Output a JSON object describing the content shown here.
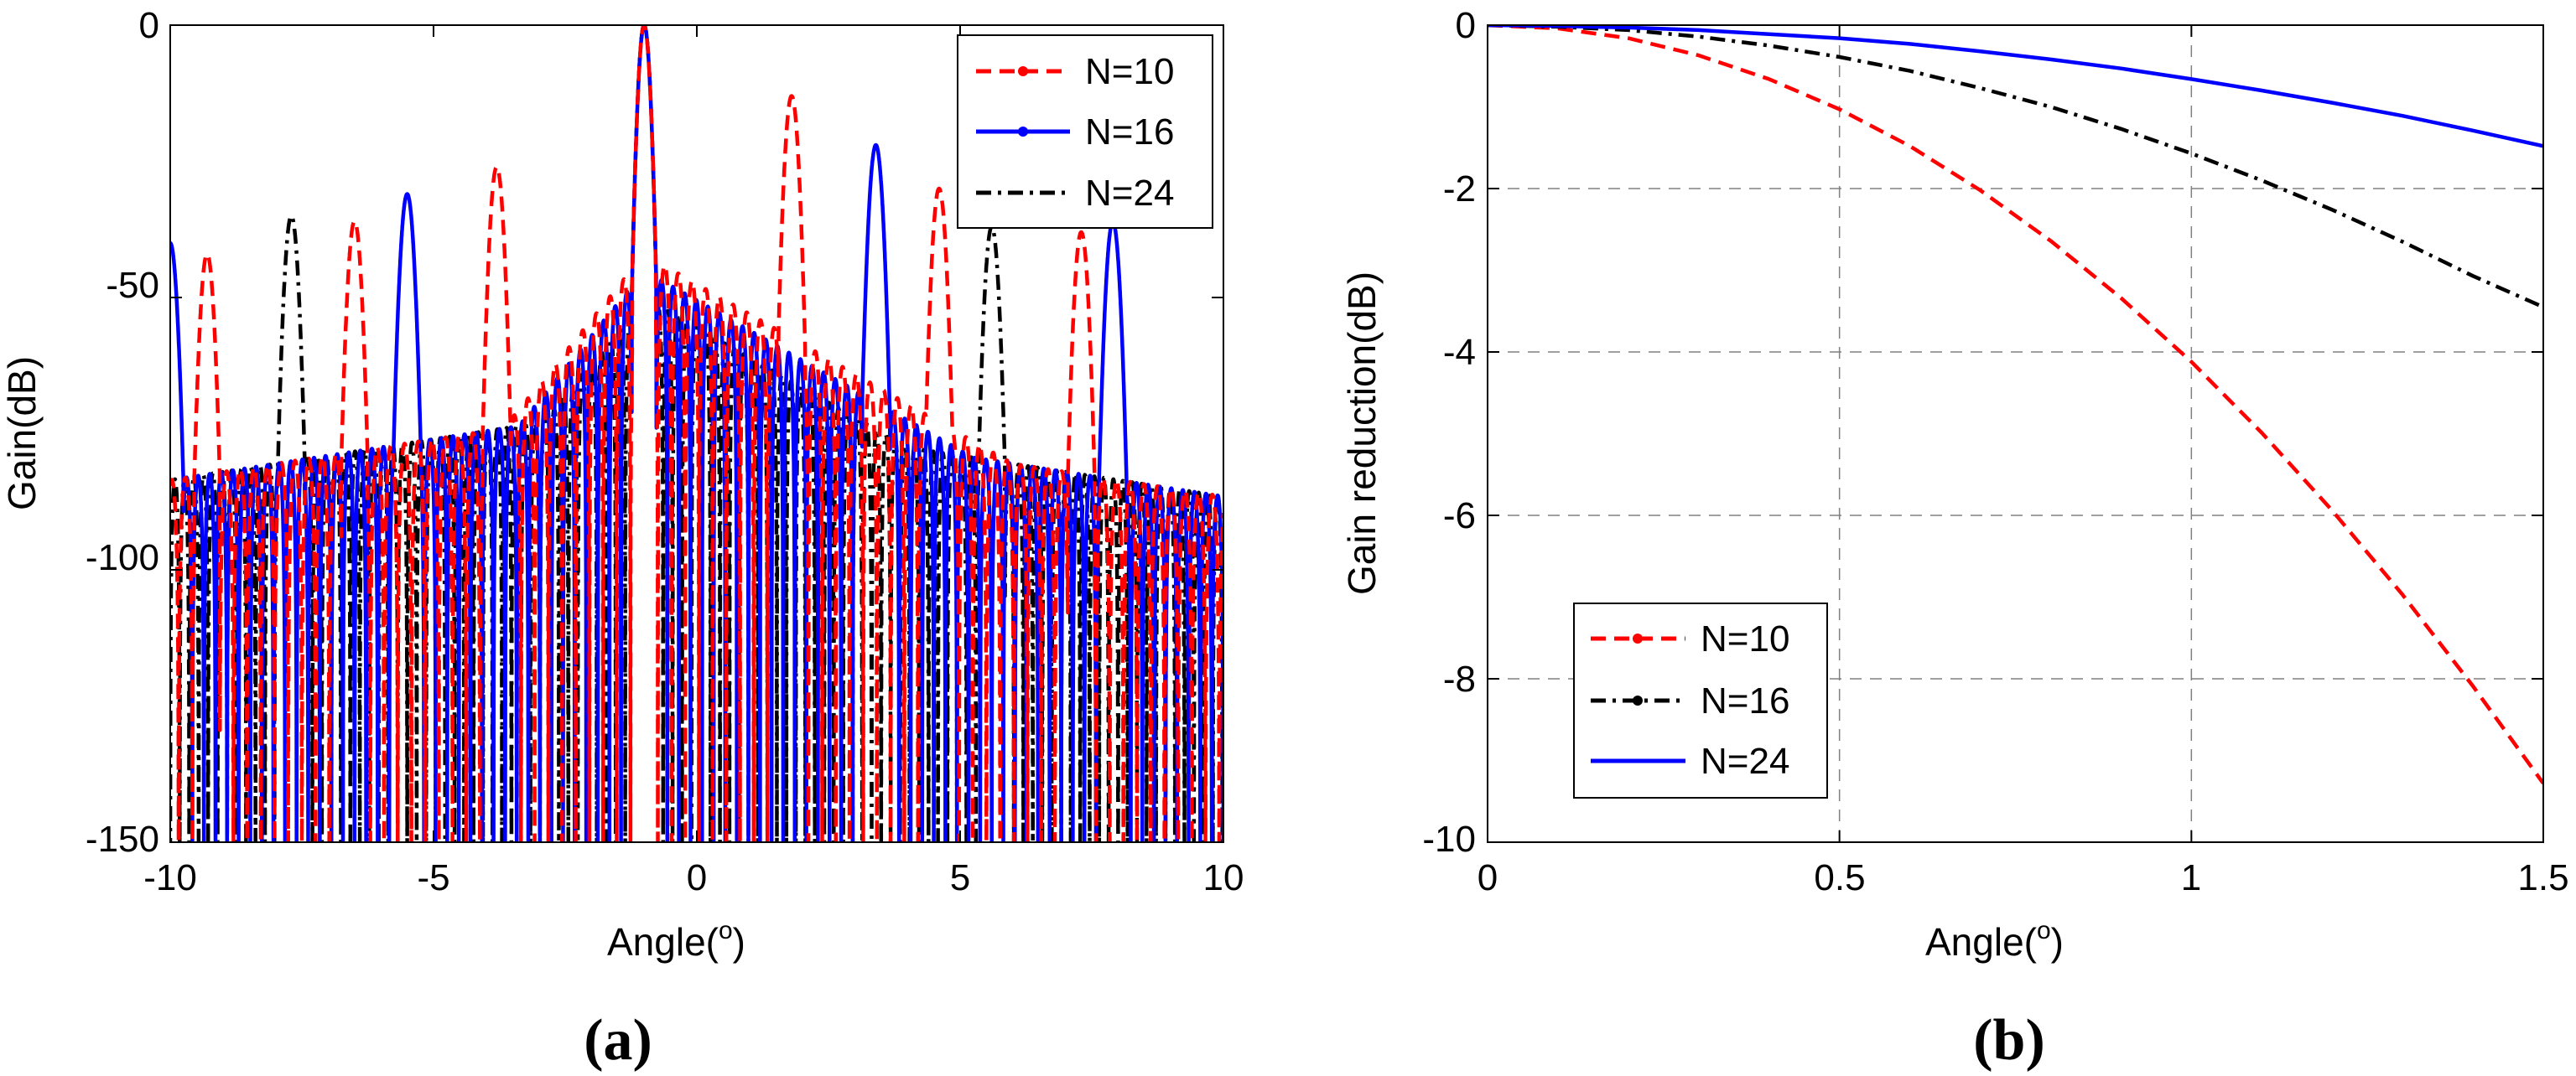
{
  "chart_data": [
    {
      "panel_label": "(a)",
      "type": "line",
      "xlabel": "Angle(o)",
      "xlabel_text": "Angle(",
      "xlabel_sup": "o",
      "xlabel_close": ")",
      "ylabel": "Gain(dB)",
      "xlim": [
        -10,
        10
      ],
      "ylim": [
        -150,
        0
      ],
      "xticks": [
        -10,
        -5,
        0,
        5,
        10
      ],
      "yticks": [
        0,
        -50,
        -100,
        -150
      ],
      "xtick_labels": [
        "-10",
        "-5",
        "0",
        "5",
        "10"
      ],
      "ytick_labels": [
        "0",
        "-50",
        "-100",
        "-150"
      ],
      "grid": false,
      "legend": "top-right",
      "series": [
        {
          "name": "N=10",
          "color": "#ff0000",
          "style": "dashed-dot-marker",
          "main_lobe": -1,
          "grating_lobes": [
            -9.3,
            -6.5,
            -3.8,
            1.8,
            4.6,
            7.3
          ],
          "grating_peak_values": [
            -42,
            -36,
            -26,
            -13,
            -30,
            -38
          ],
          "null_spacing": 0.26,
          "sidelobe_near_value": -42
        },
        {
          "name": "N=16",
          "color": "#0000ff",
          "style": "solid-marker",
          "main_lobe": -1,
          "grating_lobes": [
            -10,
            -5.5,
            3.4,
            7.9
          ],
          "grating_peak_values": [
            -40,
            -31,
            -22,
            -36
          ],
          "null_spacing": 0.22,
          "sidelobe_near_value": -45
        },
        {
          "name": "N=24",
          "color": "#000000",
          "style": "dashdot",
          "main_lobe": -1,
          "grating_lobes": [
            -7.7,
            5.6
          ],
          "grating_peak_values": [
            -35,
            -37
          ],
          "null_spacing": 0.18,
          "sidelobe_near_value": -50
        }
      ]
    },
    {
      "panel_label": "(b)",
      "type": "line",
      "xlabel": "Angle(o)",
      "xlabel_text": "Angle(",
      "xlabel_sup": "o",
      "xlabel_close": ")",
      "ylabel": "Gain reduction(dB)",
      "xlim": [
        0,
        1.5
      ],
      "ylim": [
        -10,
        0
      ],
      "xticks": [
        0,
        0.5,
        1,
        1.5
      ],
      "yticks": [
        0,
        -2,
        -4,
        -6,
        -8,
        -10
      ],
      "xtick_labels": [
        "0",
        "0.5",
        "1",
        "1.5"
      ],
      "ytick_labels": [
        "0",
        "-2",
        "-4",
        "-6",
        "-8",
        "-10"
      ],
      "grid": true,
      "legend": "bottom-left",
      "series": [
        {
          "name": "N=10",
          "color": "#ff0000",
          "style": "dashed-dot-marker",
          "x": [
            0,
            0.1,
            0.2,
            0.3,
            0.4,
            0.5,
            0.6,
            0.7,
            0.8,
            0.9,
            1.0,
            1.1,
            1.2,
            1.3,
            1.4,
            1.5
          ],
          "y": [
            0,
            -0.04,
            -0.16,
            -0.37,
            -0.66,
            -1.03,
            -1.48,
            -2.02,
            -2.64,
            -3.34,
            -4.12,
            -4.99,
            -5.94,
            -6.97,
            -8.09,
            -9.28
          ]
        },
        {
          "name": "N=16",
          "color": "#000000",
          "style": "dashdot-marker",
          "x": [
            0,
            0.1,
            0.2,
            0.3,
            0.4,
            0.5,
            0.6,
            0.7,
            0.8,
            0.9,
            1.0,
            1.1,
            1.2,
            1.3,
            1.4,
            1.5
          ],
          "y": [
            0,
            -0.02,
            -0.06,
            -0.14,
            -0.25,
            -0.39,
            -0.56,
            -0.77,
            -1.0,
            -1.27,
            -1.57,
            -1.9,
            -2.26,
            -2.65,
            -3.07,
            -3.45
          ]
        },
        {
          "name": "N=24",
          "color": "#0000ff",
          "style": "solid",
          "x": [
            0,
            0.1,
            0.2,
            0.3,
            0.4,
            0.5,
            0.6,
            0.7,
            0.8,
            0.9,
            1.0,
            1.1,
            1.2,
            1.3,
            1.4,
            1.5
          ],
          "y": [
            0,
            -0.01,
            -0.03,
            -0.06,
            -0.11,
            -0.16,
            -0.23,
            -0.32,
            -0.42,
            -0.53,
            -0.66,
            -0.8,
            -0.95,
            -1.11,
            -1.29,
            -1.48
          ]
        }
      ]
    }
  ]
}
